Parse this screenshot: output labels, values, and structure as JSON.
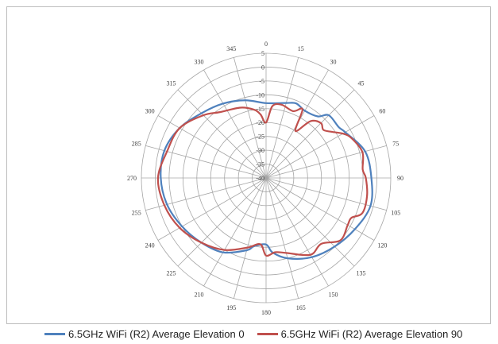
{
  "chart_data": {
    "type": "polar-line",
    "title": "",
    "angular_axis": {
      "ticks": [
        0,
        15,
        30,
        45,
        60,
        75,
        90,
        105,
        120,
        135,
        150,
        165,
        180,
        195,
        210,
        225,
        240,
        255,
        270,
        285,
        300,
        315,
        330,
        345
      ],
      "tick_labels": [
        "0",
        "15",
        "30",
        "45",
        "60",
        "75",
        "90",
        "105",
        "120",
        "135",
        "150",
        "165",
        "180",
        "195",
        "210",
        "225",
        "240",
        "255",
        "270",
        "285",
        "300",
        "315",
        "330",
        "345"
      ],
      "direction": "clockwise",
      "zero": "top"
    },
    "radial_axis": {
      "range": [
        -40,
        5
      ],
      "ticks": [
        5,
        0,
        -5,
        -10,
        -15,
        -20,
        -25,
        -30,
        -35,
        -40
      ],
      "tick_labels": [
        "5",
        "0",
        "-5",
        "-10",
        "-15",
        "-20",
        "-25",
        "-30",
        "-35",
        "-40"
      ]
    },
    "grid": true,
    "legend_position": "bottom",
    "series": [
      {
        "name": "6.5GHz WiFi (R2) Average Elevation 0",
        "color": "#4f81bd",
        "points": [
          [
            0,
            -13
          ],
          [
            15,
            -12
          ],
          [
            22,
            -11
          ],
          [
            30,
            -12
          ],
          [
            40,
            -11
          ],
          [
            45,
            -8
          ],
          [
            55,
            -8
          ],
          [
            60,
            -7
          ],
          [
            75,
            -3
          ],
          [
            90,
            -2
          ],
          [
            105,
            -1
          ],
          [
            120,
            -3
          ],
          [
            135,
            -5
          ],
          [
            150,
            -7
          ],
          [
            165,
            -10
          ],
          [
            175,
            -13
          ],
          [
            180,
            -16
          ],
          [
            190,
            -15
          ],
          [
            195,
            -13
          ],
          [
            210,
            -9
          ],
          [
            225,
            -7
          ],
          [
            240,
            -5
          ],
          [
            255,
            -3
          ],
          [
            270,
            -2
          ],
          [
            285,
            -2
          ],
          [
            300,
            -4
          ],
          [
            315,
            -7
          ],
          [
            330,
            -9
          ],
          [
            345,
            -11
          ]
        ]
      },
      {
        "name": "6.5GHz WiFi (R2) Average Elevation 90",
        "color": "#c0504d",
        "points": [
          [
            0,
            -20
          ],
          [
            5,
            -14
          ],
          [
            12,
            -13
          ],
          [
            22,
            -14
          ],
          [
            28,
            -12
          ],
          [
            32,
            -20
          ],
          [
            38,
            -14
          ],
          [
            45,
            -12
          ],
          [
            50,
            -13
          ],
          [
            55,
            -11
          ],
          [
            60,
            -8
          ],
          [
            65,
            -6
          ],
          [
            75,
            -4
          ],
          [
            85,
            -5
          ],
          [
            90,
            -4
          ],
          [
            100,
            -3
          ],
          [
            110,
            -3
          ],
          [
            115,
            -6
          ],
          [
            120,
            -6
          ],
          [
            130,
            -5
          ],
          [
            140,
            -9
          ],
          [
            150,
            -8
          ],
          [
            165,
            -12
          ],
          [
            173,
            -13
          ],
          [
            180,
            -12
          ],
          [
            185,
            -16
          ],
          [
            195,
            -14
          ],
          [
            210,
            -10
          ],
          [
            225,
            -7
          ],
          [
            240,
            -4
          ],
          [
            255,
            -2
          ],
          [
            270,
            -1
          ],
          [
            285,
            -3
          ],
          [
            300,
            -4
          ],
          [
            315,
            -8
          ],
          [
            325,
            -11
          ],
          [
            340,
            -13
          ],
          [
            350,
            -15
          ],
          [
            355,
            -17
          ]
        ]
      }
    ]
  }
}
